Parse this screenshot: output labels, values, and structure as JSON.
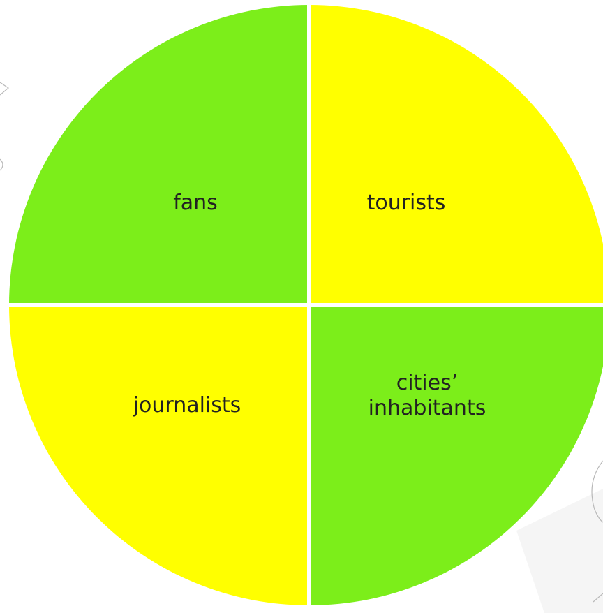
{
  "diagram": {
    "type": "quadrant-circle",
    "divider_color": "#ffffff",
    "quadrants": [
      {
        "id": "top-left",
        "lines": [
          "fans"
        ],
        "color": "#7cee1a"
      },
      {
        "id": "top-right",
        "lines": [
          "tourists"
        ],
        "color": "#ffff00"
      },
      {
        "id": "bottom-left",
        "lines": [
          "journalists"
        ],
        "color": "#ffff00"
      },
      {
        "id": "bottom-right",
        "lines": [
          "cities’",
          "inhabitants"
        ],
        "color": "#7cee1a"
      }
    ]
  }
}
